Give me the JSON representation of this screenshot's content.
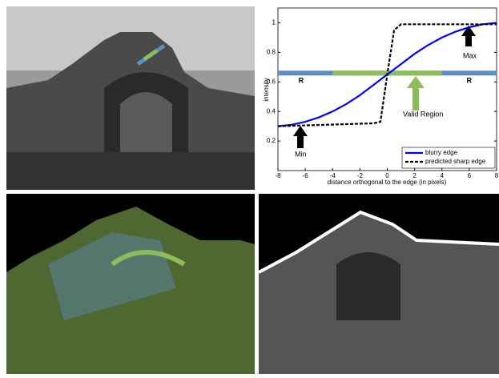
{
  "chart_data": {
    "type": "line",
    "xlabel": "distance orthogonal to the edge (in pixels)",
    "ylabel": "intensity",
    "xlim": [
      -8,
      8
    ],
    "ylim": [
      0,
      1.1
    ],
    "xticks": [
      -8,
      -6,
      -4,
      -2,
      0,
      2,
      4,
      6,
      8
    ],
    "yticks": [
      0.2,
      0.4,
      0.6,
      0.8,
      1
    ],
    "series": [
      {
        "name": "blurry edge",
        "color": "#0000ff",
        "dash": false,
        "x": [
          -8,
          -7,
          -6,
          -5,
          -4,
          -3,
          -2,
          -1,
          0,
          1,
          2,
          3,
          4,
          5,
          6,
          7,
          8
        ],
        "values": [
          0.3,
          0.31,
          0.33,
          0.36,
          0.4,
          0.45,
          0.51,
          0.58,
          0.65,
          0.72,
          0.79,
          0.85,
          0.9,
          0.94,
          0.97,
          0.99,
          1.0
        ]
      },
      {
        "name": "predicted sharp edge",
        "color": "#000000",
        "dash": true,
        "x": [
          -8,
          -1,
          -0.5,
          0,
          0.5,
          1,
          8
        ],
        "values": [
          0.3,
          0.32,
          0.33,
          0.65,
          0.95,
          0.99,
          0.99
        ]
      }
    ],
    "band": {
      "y": 0.66,
      "x": [
        -8,
        8
      ],
      "valid": [
        -4,
        4
      ],
      "color": "#5b8ec8",
      "valid_color": "#8fbc5a"
    },
    "annotations": {
      "r_left": "R",
      "r_right": "R",
      "max": "Max",
      "min": "Min",
      "valid_region": "Valid Region"
    }
  }
}
